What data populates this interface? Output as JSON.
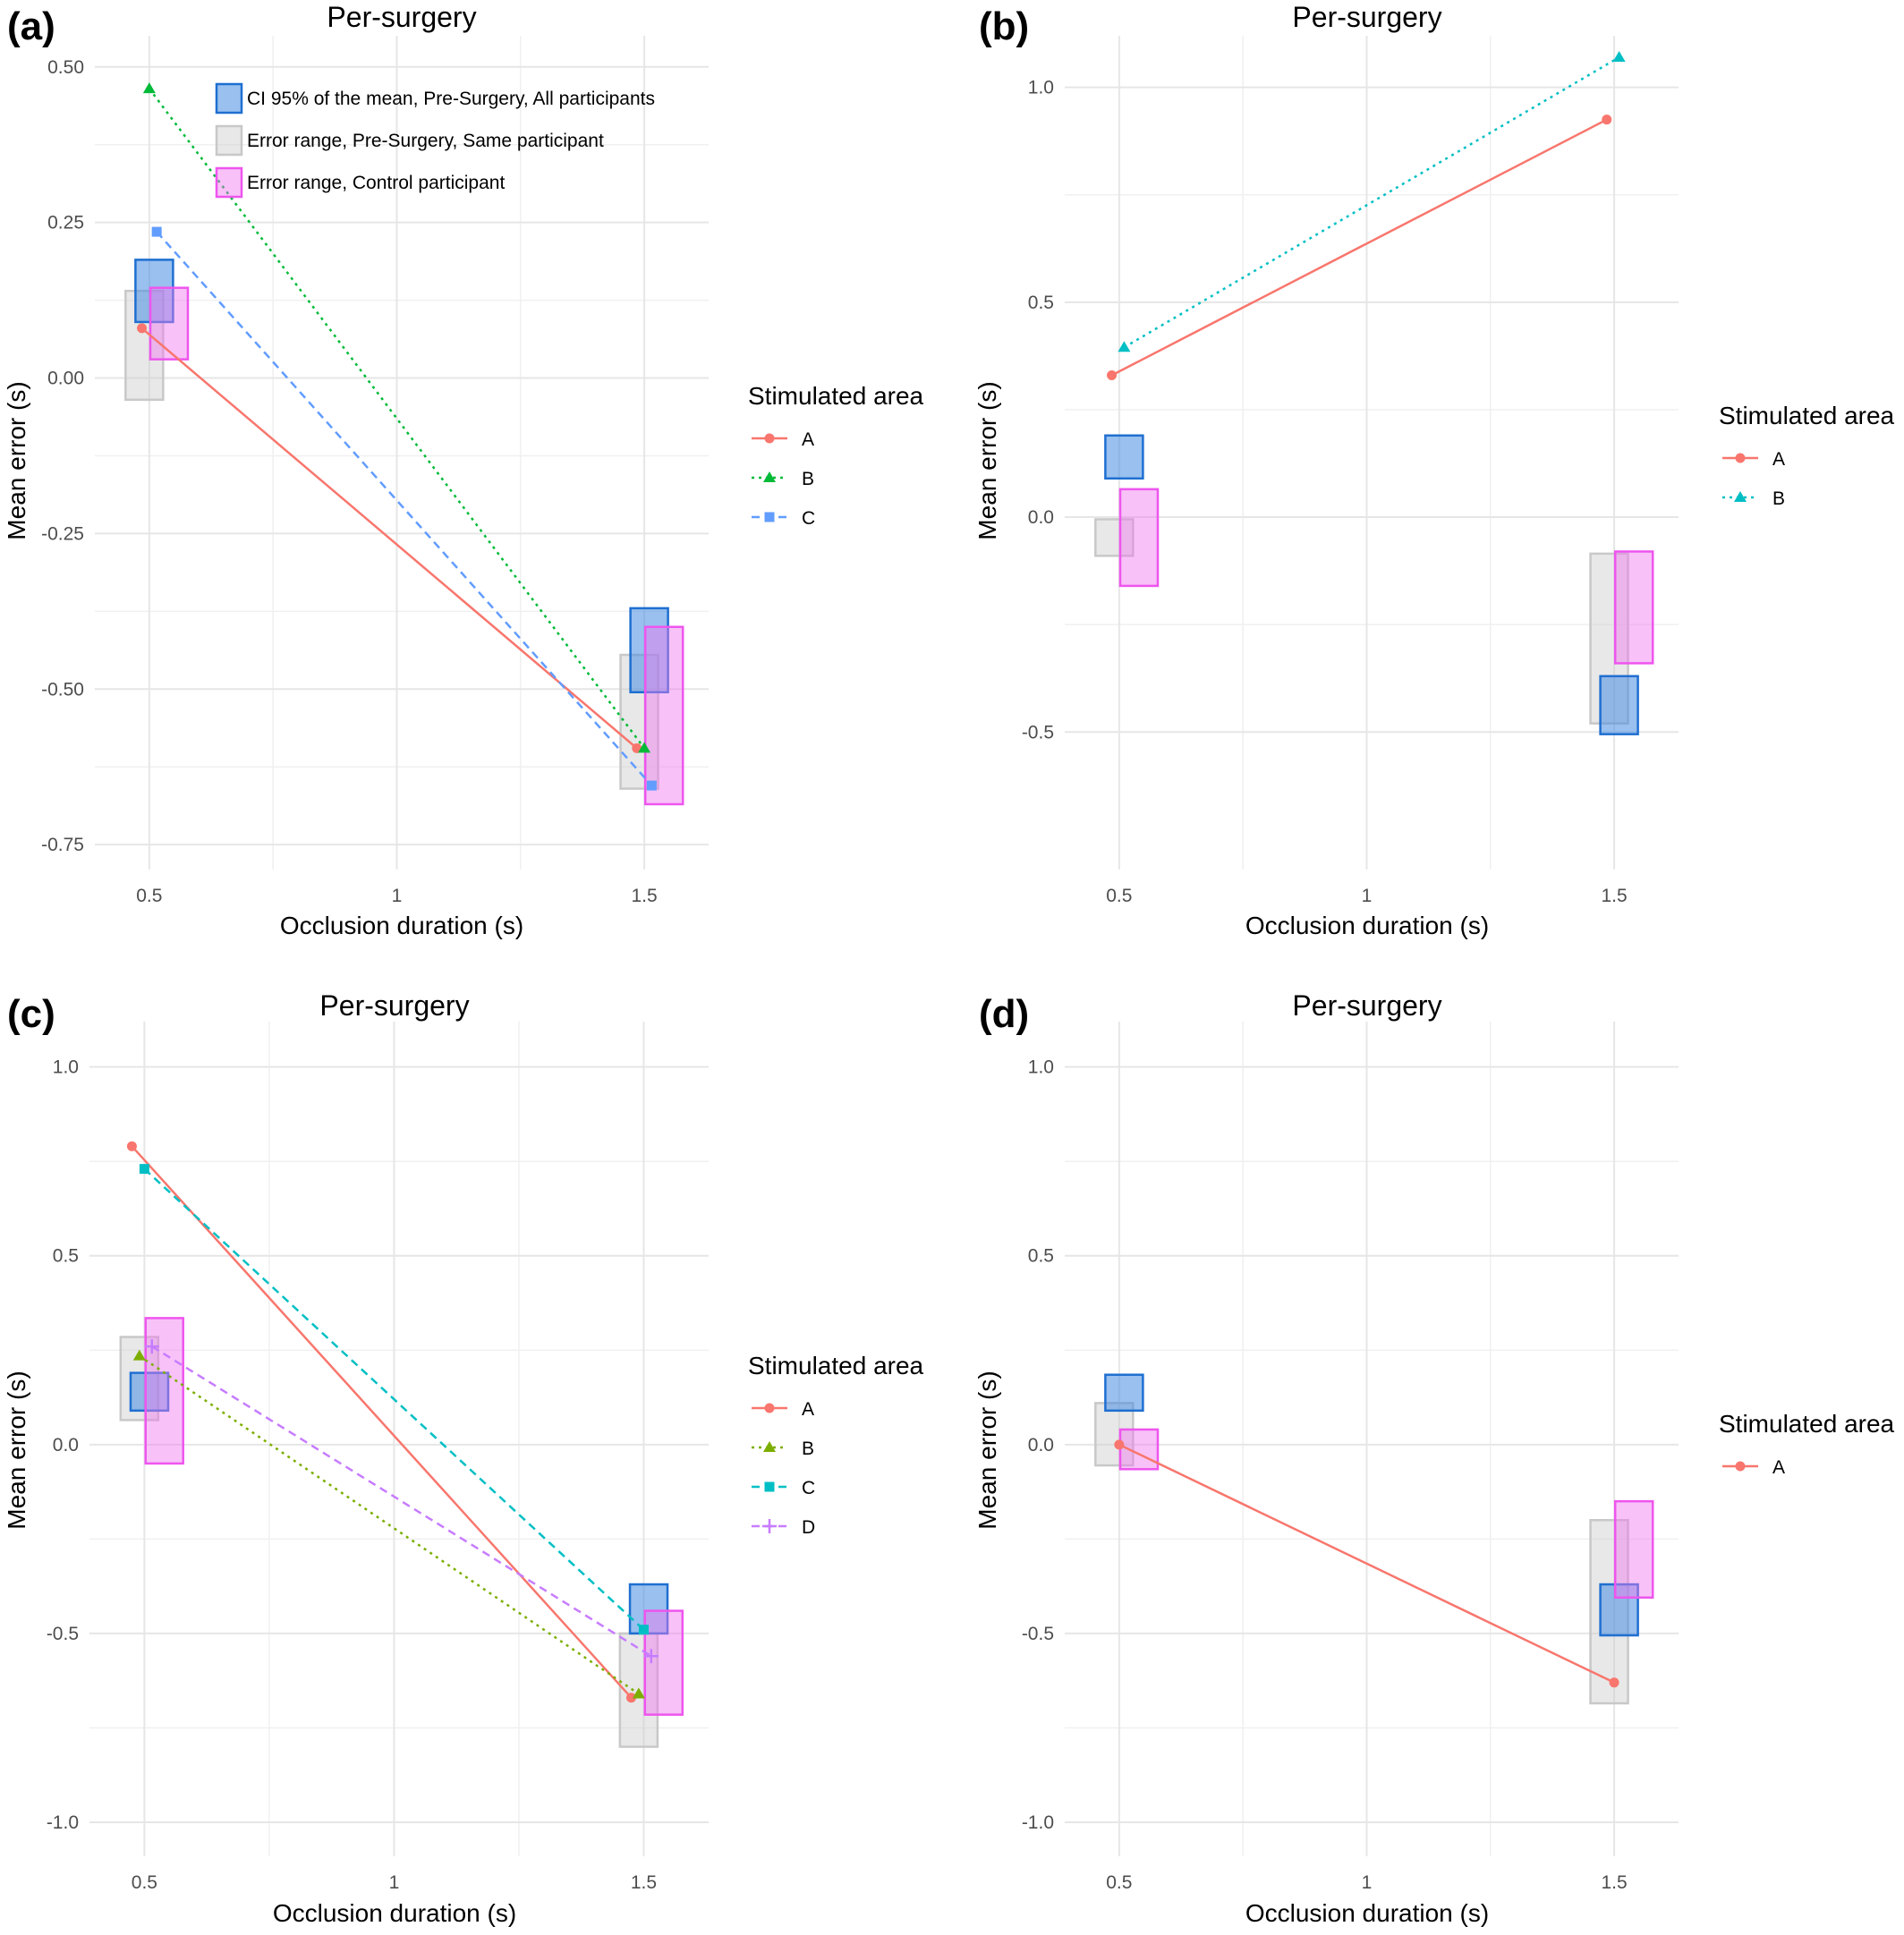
{
  "charts": [
    {
      "letter": "(a)",
      "title": "Per-surgery",
      "xlabel": "Occlusion duration (s)",
      "ylabel": "Mean error (s)",
      "legend_title": "Stimulated area",
      "box_legend": [
        {
          "label": "CI 95% of the mean, Pre-Surgery, All participants",
          "kind": "ci"
        },
        {
          "label": "Error range, Pre-Surgery, Same participant",
          "kind": "same"
        },
        {
          "label": "Error range, Control participant",
          "kind": "control"
        }
      ]
    },
    {
      "letter": "(b)",
      "title": "Per-surgery",
      "xlabel": "Occlusion duration (s)",
      "ylabel": "Mean error (s)",
      "legend_title": "Stimulated area"
    },
    {
      "letter": "(c)",
      "title": "Per-surgery",
      "xlabel": "Occlusion duration (s)",
      "ylabel": "Mean error (s)",
      "legend_title": "Stimulated area"
    },
    {
      "letter": "(d)",
      "title": "Per-surgery",
      "xlabel": "Occlusion duration (s)",
      "ylabel": "Mean error (s)",
      "legend_title": "Stimulated area"
    }
  ],
  "colors": {
    "A": "#f8766d",
    "B_a": "#00ba38",
    "C_a": "#619cff",
    "B_b": "#00bfc4",
    "B_c": "#7cae00",
    "C_c": "#00bfc4",
    "D_c": "#c77cff",
    "ci_stroke": "#1f6fd1",
    "same_stroke": "#c8c8c8",
    "control_stroke": "#ee55ee"
  },
  "chart_data": [
    {
      "type": "line",
      "panel": "a",
      "x_ticks": [
        "0.5",
        "1",
        "1.5"
      ],
      "y_ticks": [
        "-0.75",
        "-0.50",
        "-0.25",
        "0.00",
        "0.25",
        "0.50"
      ],
      "xlim": [
        0.39,
        1.63
      ],
      "ylim": [
        -0.79,
        0.55
      ],
      "series": [
        {
          "name": "A",
          "marker": "circle",
          "dash": "solid",
          "color_key": "A",
          "points": [
            [
              0.485,
              0.08
            ],
            [
              1.485,
              -0.595
            ]
          ]
        },
        {
          "name": "B",
          "marker": "triangle",
          "dash": "dotted",
          "color_key": "B_a",
          "points": [
            [
              0.5,
              0.465
            ],
            [
              1.5,
              -0.595
            ]
          ]
        },
        {
          "name": "C",
          "marker": "square",
          "dash": "dashed",
          "color_key": "C_a",
          "points": [
            [
              0.515,
              0.235
            ],
            [
              1.515,
              -0.655
            ]
          ]
        }
      ],
      "boxes": [
        {
          "kind": "same",
          "x": 0.49,
          "ymin": -0.035,
          "ymax": 0.14
        },
        {
          "kind": "ci",
          "x": 0.51,
          "ymin": 0.09,
          "ymax": 0.19
        },
        {
          "kind": "control",
          "x": 0.54,
          "ymin": 0.03,
          "ymax": 0.145
        },
        {
          "kind": "same",
          "x": 1.49,
          "ymin": -0.66,
          "ymax": -0.445
        },
        {
          "kind": "ci",
          "x": 1.51,
          "ymin": -0.505,
          "ymax": -0.37
        },
        {
          "kind": "control",
          "x": 1.54,
          "ymin": -0.685,
          "ymax": -0.4
        }
      ]
    },
    {
      "type": "line",
      "panel": "b",
      "x_ticks": [
        "0.5",
        "1",
        "1.5"
      ],
      "y_ticks": [
        "-0.5",
        "0.0",
        "0.5",
        "1.0"
      ],
      "xlim": [
        0.39,
        1.63
      ],
      "ylim": [
        -0.82,
        1.12
      ],
      "series": [
        {
          "name": "A",
          "marker": "circle",
          "dash": "solid",
          "color_key": "A",
          "points": [
            [
              0.485,
              0.33
            ],
            [
              1.485,
              0.925
            ]
          ]
        },
        {
          "name": "B",
          "marker": "triangle",
          "dash": "dotted",
          "color_key": "B_b",
          "points": [
            [
              0.51,
              0.395
            ],
            [
              1.51,
              1.07
            ]
          ]
        }
      ],
      "boxes": [
        {
          "kind": "same",
          "x": 0.49,
          "ymin": -0.09,
          "ymax": -0.005
        },
        {
          "kind": "ci",
          "x": 0.51,
          "ymin": 0.09,
          "ymax": 0.19
        },
        {
          "kind": "control",
          "x": 0.54,
          "ymin": -0.16,
          "ymax": 0.065
        },
        {
          "kind": "same",
          "x": 1.49,
          "ymin": -0.48,
          "ymax": -0.085
        },
        {
          "kind": "ci",
          "x": 1.51,
          "ymin": -0.505,
          "ymax": -0.37
        },
        {
          "kind": "control",
          "x": 1.54,
          "ymin": -0.34,
          "ymax": -0.08
        }
      ]
    },
    {
      "type": "line",
      "panel": "c",
      "x_ticks": [
        "0.5",
        "1",
        "1.5"
      ],
      "y_ticks": [
        "-1.0",
        "-0.5",
        "0.0",
        "0.5",
        "1.0"
      ],
      "xlim": [
        0.39,
        1.63
      ],
      "ylim": [
        -1.09,
        1.12
      ],
      "series": [
        {
          "name": "A",
          "marker": "circle",
          "dash": "solid",
          "color_key": "A",
          "points": [
            [
              0.475,
              0.79
            ],
            [
              1.475,
              -0.67
            ]
          ]
        },
        {
          "name": "B",
          "marker": "triangle",
          "dash": "dotted",
          "color_key": "B_c",
          "points": [
            [
              0.49,
              0.235
            ],
            [
              1.49,
              -0.66
            ]
          ]
        },
        {
          "name": "C",
          "marker": "square",
          "dash": "dashed",
          "color_key": "C_c",
          "points": [
            [
              0.5,
              0.73
            ],
            [
              1.5,
              -0.49
            ]
          ]
        },
        {
          "name": "D",
          "marker": "plus",
          "dash": "dashed",
          "color_key": "D_c",
          "points": [
            [
              0.515,
              0.26
            ],
            [
              1.515,
              -0.56
            ]
          ]
        }
      ],
      "boxes": [
        {
          "kind": "same",
          "x": 0.49,
          "ymin": 0.065,
          "ymax": 0.285
        },
        {
          "kind": "ci",
          "x": 0.51,
          "ymin": 0.09,
          "ymax": 0.19
        },
        {
          "kind": "control",
          "x": 0.54,
          "ymin": -0.05,
          "ymax": 0.335
        },
        {
          "kind": "same",
          "x": 1.49,
          "ymin": -0.8,
          "ymax": -0.5
        },
        {
          "kind": "ci",
          "x": 1.51,
          "ymin": -0.5,
          "ymax": -0.37
        },
        {
          "kind": "control",
          "x": 1.54,
          "ymin": -0.715,
          "ymax": -0.44
        }
      ]
    },
    {
      "type": "line",
      "panel": "d",
      "x_ticks": [
        "0.5",
        "1",
        "1.5"
      ],
      "y_ticks": [
        "-1.0",
        "-0.5",
        "0.0",
        "0.5",
        "1.0"
      ],
      "xlim": [
        0.39,
        1.63
      ],
      "ylim": [
        -1.09,
        1.12
      ],
      "series": [
        {
          "name": "A",
          "marker": "circle",
          "dash": "solid",
          "color_key": "A",
          "points": [
            [
              0.5,
              0.0
            ],
            [
              1.5,
              -0.63
            ]
          ]
        }
      ],
      "boxes": [
        {
          "kind": "same",
          "x": 0.49,
          "ymin": -0.055,
          "ymax": 0.11
        },
        {
          "kind": "ci",
          "x": 0.51,
          "ymin": 0.09,
          "ymax": 0.185
        },
        {
          "kind": "control",
          "x": 0.54,
          "ymin": -0.065,
          "ymax": 0.04
        },
        {
          "kind": "same",
          "x": 1.49,
          "ymin": -0.685,
          "ymax": -0.2
        },
        {
          "kind": "ci",
          "x": 1.51,
          "ymin": -0.505,
          "ymax": -0.37
        },
        {
          "kind": "control",
          "x": 1.54,
          "ymin": -0.405,
          "ymax": -0.15
        }
      ]
    }
  ]
}
